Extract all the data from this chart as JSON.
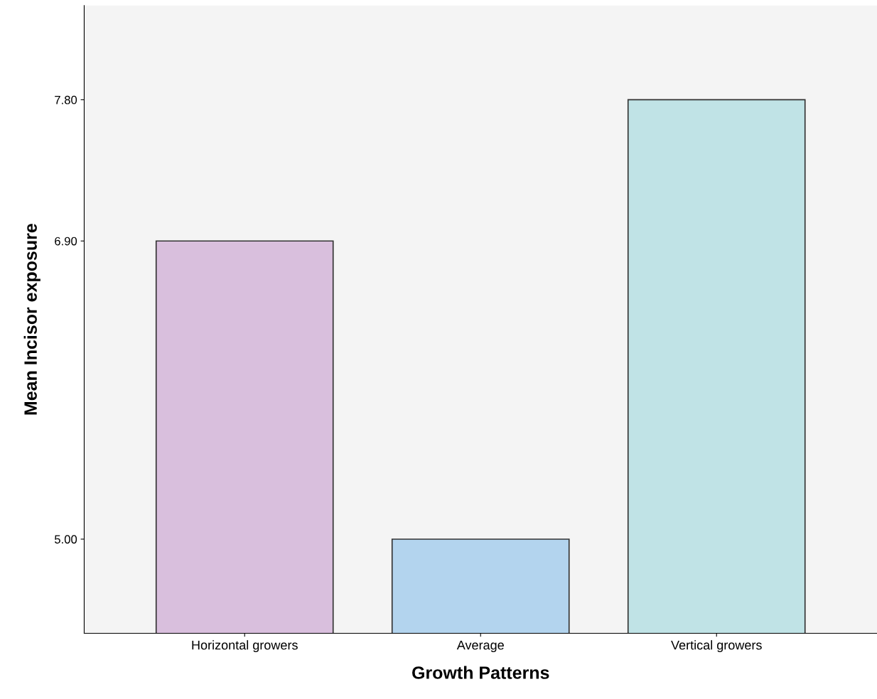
{
  "chart_data": {
    "type": "bar",
    "xlabel": "Growth Patterns",
    "ylabel": "Mean Incisor exposure",
    "categories": [
      "Horizontal growers",
      "Average",
      "Vertical growers"
    ],
    "values": [
      6.9,
      5.0,
      7.8
    ],
    "colors": [
      "#d9bfdd",
      "#b3d4ee",
      "#c0e3e6"
    ],
    "ylim": [
      4.4,
      8.4
    ],
    "yticks": [
      {
        "value": 5.0,
        "label": "5.00"
      },
      {
        "value": 6.9,
        "label": "6.90"
      },
      {
        "value": 7.8,
        "label": "7.80"
      }
    ],
    "grid": false,
    "legend": false
  }
}
